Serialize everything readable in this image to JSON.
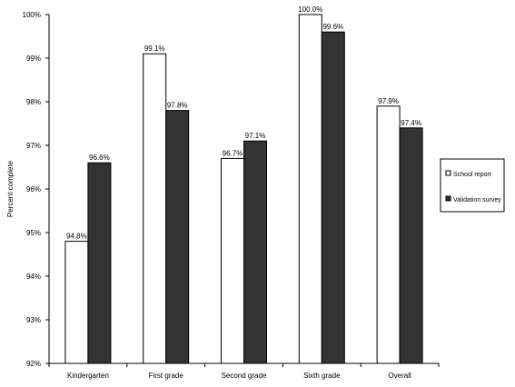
{
  "chart_data": {
    "type": "bar",
    "ylabel": "Percent complete",
    "ylim": [
      92,
      100
    ],
    "yticks": [
      "92%",
      "93%",
      "94%",
      "95%",
      "96%",
      "97%",
      "98%",
      "99%",
      "100%"
    ],
    "categories": [
      "Kindergarten",
      "First grade",
      "Second grade",
      "Sixth grade",
      "Overall"
    ],
    "series": [
      {
        "name": "School report",
        "values": [
          94.8,
          99.1,
          96.7,
          100.0,
          97.9
        ],
        "labels": [
          "94.8%",
          "99.1%",
          "96.7%",
          "100.0%",
          "97.9%"
        ],
        "color": "#ffffff"
      },
      {
        "name": "Validation survey",
        "values": [
          96.6,
          97.8,
          97.1,
          99.6,
          97.4
        ],
        "labels": [
          "96.6%",
          "97.8%",
          "97.1%",
          "99.6%",
          "97.4%"
        ],
        "color": "#333333"
      }
    ],
    "grid": false,
    "legend_position": "right"
  }
}
